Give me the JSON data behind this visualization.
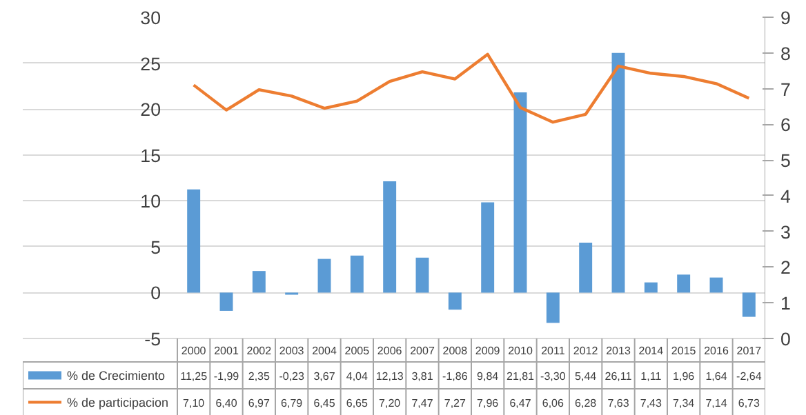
{
  "chart_data": {
    "type": "bar",
    "categories": [
      "2000",
      "2001",
      "2002",
      "2003",
      "2004",
      "2005",
      "2006",
      "2007",
      "2008",
      "2009",
      "2010",
      "2011",
      "2012",
      "2013",
      "2014",
      "2015",
      "2016",
      "2017"
    ],
    "series": [
      {
        "name": "% de Crecimiento",
        "color": "#5b9bd5",
        "values": [
          11.25,
          -1.99,
          2.35,
          -0.23,
          3.67,
          4.04,
          12.13,
          3.81,
          -1.86,
          9.84,
          21.81,
          -3.3,
          5.44,
          26.11,
          1.11,
          1.96,
          1.64,
          -2.64
        ],
        "value_labels": [
          "11,25",
          "-1,99",
          "2,35",
          "-0,23",
          "3,67",
          "4,04",
          "12,13",
          "3,81",
          "-1,86",
          "9,84",
          "21,81",
          "-3,30",
          "5,44",
          "26,11",
          "1,11",
          "1,96",
          "1,64",
          "-2,64"
        ]
      },
      {
        "name": "% de participacion",
        "type": "line",
        "axis": "y2",
        "color": "#ed7d31",
        "values": [
          7.1,
          6.4,
          6.97,
          6.79,
          6.45,
          6.65,
          7.2,
          7.47,
          7.27,
          7.96,
          6.47,
          6.06,
          6.28,
          7.63,
          7.43,
          7.34,
          7.14,
          6.73
        ],
        "value_labels": [
          "7,10",
          "6,40",
          "6,97",
          "6,79",
          "6,45",
          "6,65",
          "7,20",
          "7,47",
          "7,27",
          "7,96",
          "6,47",
          "6,06",
          "6,28",
          "7,63",
          "7,43",
          "7,34",
          "7,14",
          "6,73"
        ]
      }
    ],
    "ylim": [
      -5,
      30
    ],
    "yticks": [
      -5,
      0,
      5,
      10,
      15,
      20,
      25,
      30
    ],
    "y2lim": [
      0,
      9
    ],
    "y2ticks": [
      0,
      1,
      2,
      3,
      4,
      5,
      6,
      7,
      8,
      9
    ],
    "grid": "y",
    "legend": "bottom",
    "marker": "none",
    "line_style": "solid"
  }
}
